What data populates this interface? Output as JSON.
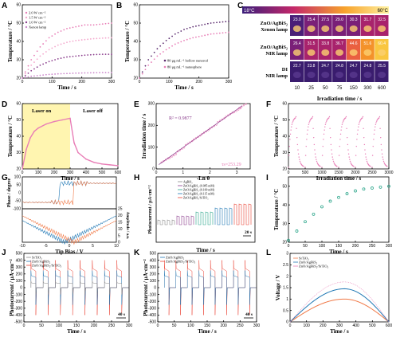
{
  "panels": {
    "A": "A",
    "B": "B",
    "C": "C",
    "D": "D",
    "E": "E",
    "F": "F",
    "G": "G",
    "H": "H",
    "I": "I",
    "J": "J",
    "K": "K",
    "L": "L"
  },
  "colors": {
    "pink": "#e87db6",
    "light_pink": "#f4a6cc",
    "purple": "#8a3c8c",
    "dark_purple": "#5a2a6e",
    "blue": "#1f77b4",
    "orange": "#f07846",
    "red": "#ea4335",
    "green": "#2aa58a",
    "gray": "#888888",
    "yellow": "#fff5b0"
  },
  "chart_data": [
    {
      "panel": "A",
      "type": "line",
      "xlabel": "Time / s",
      "ylabel": "Temperature / °C",
      "xlim": [
        0,
        300
      ],
      "ylim": [
        20,
        60
      ],
      "xticks": [
        0,
        100,
        200,
        300
      ],
      "yticks": [
        20,
        30,
        40,
        50,
        60
      ],
      "series": [
        {
          "name": "2.0 W cm⁻²",
          "values": [
            20,
            30,
            37,
            42,
            45,
            47,
            48,
            49,
            49,
            49.5,
            50
          ]
        },
        {
          "name": "1.5 W cm⁻²",
          "values": [
            20,
            27,
            32,
            35.5,
            38,
            39.5,
            40.5,
            41,
            41.5,
            41.8,
            42
          ]
        },
        {
          "name": "1.0 W cm⁻²",
          "values": [
            20,
            24,
            27,
            29,
            30.5,
            31.5,
            32,
            32.5,
            32.8,
            33,
            33
          ]
        },
        {
          "name": "Xenon lamp",
          "values": [
            20,
            21,
            21.5,
            22,
            22.3,
            22.5,
            22.7,
            22.8,
            22.9,
            23,
            23
          ]
        }
      ],
      "x": [
        0,
        30,
        60,
        90,
        120,
        150,
        180,
        210,
        240,
        270,
        300
      ]
    },
    {
      "panel": "B",
      "type": "line",
      "xlabel": "Time / s",
      "ylabel": "Temperature / °C",
      "xlim": [
        0,
        300
      ],
      "ylim": [
        20,
        60
      ],
      "xticks": [
        0,
        100,
        200,
        300
      ],
      "yticks": [
        20,
        30,
        40,
        50,
        60
      ],
      "x": [
        0,
        30,
        60,
        90,
        120,
        150,
        180,
        210,
        240,
        270,
        300
      ],
      "series": [
        {
          "name": "80 μg mL⁻¹ hollow nanorod",
          "values": [
            20,
            30,
            36,
            40.5,
            44,
            46.5,
            48,
            49,
            50,
            50.5,
            51
          ]
        },
        {
          "name": "80 μg mL⁻¹ nanosphere",
          "values": [
            20,
            27,
            32,
            35.5,
            38.5,
            40.5,
            42,
            43,
            44,
            44.5,
            45
          ]
        }
      ]
    },
    {
      "panel": "C",
      "type": "heatmap",
      "temp_min": "18°C",
      "temp_max": "60°C",
      "xlabel": "Irradiation time / s",
      "xticks": [
        "10",
        "25",
        "50",
        "75",
        "150",
        "300",
        "600"
      ],
      "rows": [
        {
          "label": "ZnO/AgBiS₂ Xenon lamp",
          "values": [
            "23.0",
            "25.4",
            "27.5",
            "29.0",
            "30.3",
            "31.7",
            "32.5"
          ]
        },
        {
          "label": "ZnO/AgBiS₂ NIR lamp",
          "values": [
            "26.4",
            "31.5",
            "33.8",
            "36.7",
            "44.6",
            "51.6",
            "60.4"
          ]
        },
        {
          "label": "DI NIR lamp",
          "values": [
            "22.7",
            "23.8",
            "24.7",
            "24.8",
            "24.7",
            "24.8",
            "25.5"
          ]
        }
      ]
    },
    {
      "panel": "D",
      "type": "line",
      "xlabel": "Time / s",
      "ylabel": "Temperature / °C",
      "xlim": [
        0,
        600
      ],
      "ylim": [
        20,
        60
      ],
      "xticks": [
        0,
        100,
        200,
        300,
        400,
        500,
        600
      ],
      "yticks": [
        20,
        30,
        40,
        50,
        60
      ],
      "annotations": [
        "Laser on",
        "Laser off"
      ],
      "laser_on_until": 300,
      "x": [
        0,
        25,
        50,
        75,
        100,
        150,
        200,
        250,
        300,
        325,
        350,
        400,
        450,
        500,
        550,
        600
      ],
      "values": [
        20,
        32,
        39,
        43,
        45,
        47.5,
        49,
        50,
        51,
        36,
        30,
        26,
        24,
        23,
        22.5,
        22
      ]
    },
    {
      "panel": "E",
      "type": "scatter",
      "xlabel": "-Ln θ",
      "ylabel": "Irradiation time / s",
      "xlim": [
        0,
        3.5
      ],
      "ylim": [
        0,
        300
      ],
      "xticks": [
        0,
        1,
        2,
        3
      ],
      "yticks": [
        0,
        100,
        200,
        300
      ],
      "r2": "R² = 0.9877",
      "tau": "τs=253.29",
      "x": [
        0.2,
        0.5,
        0.8,
        1.1,
        1.4,
        1.7,
        2.0,
        2.3,
        2.6,
        2.9,
        3.1
      ],
      "values": [
        30,
        50,
        80,
        110,
        135,
        160,
        185,
        215,
        240,
        260,
        280
      ]
    },
    {
      "panel": "F",
      "type": "line",
      "xlabel": "Irradiation time / s",
      "ylabel": "Temperature / °C",
      "xlim": [
        0,
        3000
      ],
      "ylim": [
        20,
        60
      ],
      "xticks": [
        0,
        500,
        1000,
        1500,
        2000,
        2500,
        3000
      ],
      "yticks": [
        20,
        30,
        40,
        50,
        60
      ],
      "cycles": 6,
      "tmin": 21,
      "tmax": 52
    },
    {
      "panel": "G",
      "type": "line",
      "xlabel": "Tip Bias / V",
      "ylabel": "Phase / degree",
      "ylabel2": "Amplitude / a.u.",
      "xlim": [
        -10,
        10
      ],
      "xticks": [
        -10,
        -5,
        0,
        5,
        10
      ],
      "ylim_top": [
        -100,
        100
      ],
      "yticks_top": [
        -100,
        -50,
        0,
        50,
        100
      ],
      "yticks_bottom": [
        0,
        5,
        10,
        15,
        20,
        25
      ]
    },
    {
      "panel": "H",
      "type": "line",
      "xlabel": "Time / s",
      "ylabel": "Photocurrent / μA·cm⁻²",
      "scale": "20 s",
      "series": [
        {
          "name": "AgBiS₂"
        },
        {
          "name": "ZnO/AgBiS₂ (0.085 mM)"
        },
        {
          "name": "ZnO/AgBiS₂ (0.100 mM)"
        },
        {
          "name": "ZnO/AgBiS₂ (0.115 mM)"
        },
        {
          "name": "ZnO/AgBiS₂/SrTiO₃"
        }
      ]
    },
    {
      "panel": "I",
      "type": "scatter",
      "xlabel": "Time / s",
      "ylabel": "Temperature / °C",
      "xlim": [
        0,
        300
      ],
      "ylim": [
        20,
        55
      ],
      "xticks": [
        0,
        50,
        100,
        150,
        200,
        250,
        300
      ],
      "yticks": [
        20,
        30,
        40,
        50
      ],
      "x": [
        0,
        25,
        50,
        75,
        100,
        125,
        150,
        175,
        200,
        225,
        250,
        275,
        300
      ],
      "values": [
        21,
        26,
        31,
        35,
        39,
        42,
        44,
        46,
        47.5,
        48.5,
        49,
        49.5,
        50
      ]
    },
    {
      "panel": "J",
      "type": "line",
      "xlabel": "Time / s",
      "ylabel": "Photocurrent / μA·cm⁻²",
      "xlim": [
        0,
        300
      ],
      "ylim": [
        -500,
        500
      ],
      "xticks": [
        0,
        50,
        100,
        150,
        200,
        250,
        300
      ],
      "yticks": [
        -500,
        -400,
        -300,
        -200,
        -100,
        0,
        100,
        200,
        300,
        400,
        500
      ],
      "scale": "40 s",
      "series": [
        {
          "name": "SrTiO₃",
          "amp": 100
        },
        {
          "name": "ZnO/AgBiS₂",
          "amp": 250
        },
        {
          "name": "ZnO/AgBiS₂/SrTiO₃",
          "amp": 400
        }
      ]
    },
    {
      "panel": "K",
      "type": "line",
      "xlabel": "Time / s",
      "ylabel": "Photocurrent / μA·cm⁻²",
      "xlim": [
        0,
        300
      ],
      "ylim": [
        -500,
        500
      ],
      "xticks": [
        0,
        50,
        100,
        150,
        200,
        250,
        300
      ],
      "yticks": [
        -500,
        -400,
        -300,
        -200,
        -100,
        0,
        100,
        200,
        300,
        400,
        500
      ],
      "scale": "40 s",
      "series": [
        {
          "name": "ZnO/AgBiS₂",
          "amp": 250
        },
        {
          "name": "ZnO/AgBiS₂/SrTiO₃",
          "amp": 400
        }
      ]
    },
    {
      "panel": "L",
      "type": "line",
      "xlabel": "Time / s",
      "ylabel": "Voltage / V",
      "xlim": [
        0,
        600
      ],
      "ylim": [
        0,
        3.0
      ],
      "xticks": [
        0,
        100,
        200,
        300,
        400,
        500,
        600
      ],
      "yticks": [
        0,
        0.5,
        1.0,
        1.5,
        2.0,
        2.5,
        3.0
      ],
      "series": [
        {
          "name": "SrTiO₃",
          "peak": 1.0
        },
        {
          "name": "ZnO/AgBiS₂",
          "peak": 1.45
        },
        {
          "name": "ZnO/AgBiS₂/SrTiO₃",
          "peak": 1.75
        }
      ]
    }
  ]
}
